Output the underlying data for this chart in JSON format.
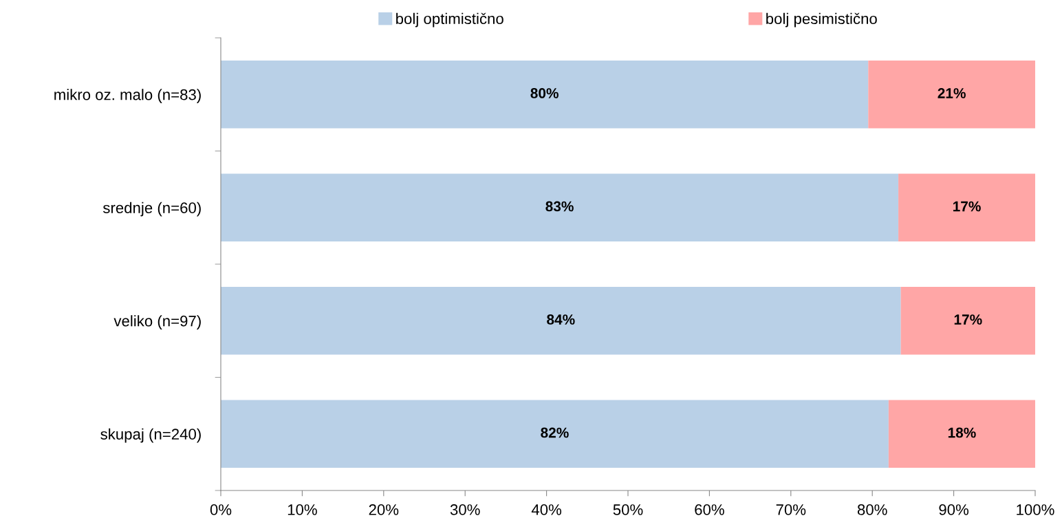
{
  "chart_data": {
    "type": "bar",
    "orientation": "horizontal",
    "stacked": true,
    "categories": [
      "mikro oz. malo (n=83)",
      "srednje (n=60)",
      "veliko (n=97)",
      "skupaj (n=240)"
    ],
    "series": [
      {
        "name": "bolj optimistično",
        "color": "#b9d0e7",
        "values": [
          79.5,
          83.2,
          83.5,
          82
        ],
        "value_labels": [
          "80%",
          "83%",
          "84%",
          "82%"
        ]
      },
      {
        "name": "bolj pesimistično",
        "color": "#ffa6a6",
        "values": [
          20.5,
          16.8,
          16.5,
          18
        ],
        "value_labels": [
          "21%",
          "17%",
          "17%",
          "18%"
        ]
      }
    ],
    "xlim": [
      0,
      100
    ],
    "xticks": [
      {
        "value": 0,
        "label": "0%"
      },
      {
        "value": 10,
        "label": "10%"
      },
      {
        "value": 20,
        "label": "20%"
      },
      {
        "value": 30,
        "label": "30%"
      },
      {
        "value": 40,
        "label": "40%"
      },
      {
        "value": 50,
        "label": "50%"
      },
      {
        "value": 60,
        "label": "60%"
      },
      {
        "value": 70,
        "label": "70%"
      },
      {
        "value": 80,
        "label": "80%"
      },
      {
        "value": 90,
        "label": "90%"
      },
      {
        "value": 100,
        "label": "100%"
      }
    ],
    "grid": false,
    "legend": "top"
  }
}
